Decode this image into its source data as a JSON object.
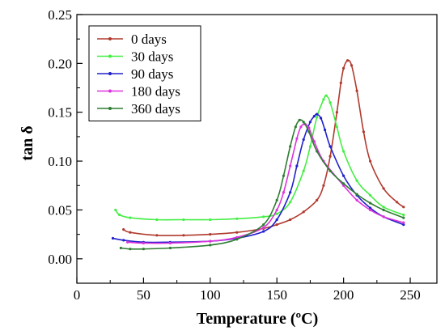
{
  "chart_data": {
    "type": "line",
    "xlabel": "Temperature (ºC)",
    "ylabel": "tan δ",
    "xlim": [
      0,
      270
    ],
    "ylim": [
      -0.025,
      0.25
    ],
    "x_ticks": [
      0,
      50,
      100,
      150,
      200,
      250
    ],
    "y_ticks": [
      0.0,
      0.05,
      0.1,
      0.15,
      0.2,
      0.25
    ],
    "x_tick_labels": [
      "0",
      "50",
      "100",
      "150",
      "200",
      "250"
    ],
    "y_tick_labels": [
      "0.00",
      "0.05",
      "0.10",
      "0.15",
      "0.20",
      "0.25"
    ],
    "grid": false,
    "legend_position": "top-left",
    "series": [
      {
        "name": "0 days",
        "color": "#b03a2e",
        "x": [
          35,
          40,
          60,
          80,
          100,
          120,
          140,
          150,
          160,
          170,
          180,
          185,
          190,
          195,
          198,
          200,
          203,
          206,
          210,
          215,
          220,
          230,
          240,
          245
        ],
        "y": [
          0.03,
          0.027,
          0.024,
          0.024,
          0.025,
          0.027,
          0.031,
          0.035,
          0.04,
          0.048,
          0.06,
          0.075,
          0.105,
          0.15,
          0.18,
          0.195,
          0.203,
          0.198,
          0.172,
          0.13,
          0.1,
          0.072,
          0.058,
          0.053
        ]
      },
      {
        "name": "30 days",
        "color": "#44ee44",
        "x": [
          29,
          32,
          40,
          60,
          80,
          100,
          120,
          140,
          150,
          160,
          170,
          175,
          180,
          185,
          187,
          190,
          195,
          200,
          210,
          220,
          230,
          245
        ],
        "y": [
          0.05,
          0.045,
          0.042,
          0.04,
          0.04,
          0.04,
          0.041,
          0.043,
          0.046,
          0.058,
          0.09,
          0.115,
          0.145,
          0.163,
          0.167,
          0.16,
          0.135,
          0.11,
          0.08,
          0.065,
          0.053,
          0.045
        ]
      },
      {
        "name": "90 days",
        "color": "#2020cc",
        "x": [
          27,
          35,
          50,
          70,
          100,
          120,
          140,
          150,
          160,
          165,
          170,
          175,
          178,
          180,
          183,
          186,
          190,
          200,
          210,
          220,
          230,
          245
        ],
        "y": [
          0.021,
          0.019,
          0.017,
          0.017,
          0.018,
          0.021,
          0.028,
          0.04,
          0.068,
          0.095,
          0.122,
          0.14,
          0.146,
          0.148,
          0.144,
          0.132,
          0.115,
          0.085,
          0.065,
          0.052,
          0.043,
          0.035
        ]
      },
      {
        "name": "180 days",
        "color": "#dd33dd",
        "x": [
          38,
          50,
          70,
          100,
          120,
          140,
          150,
          155,
          160,
          165,
          168,
          171,
          174,
          178,
          185,
          200,
          210,
          220,
          230,
          245
        ],
        "y": [
          0.017,
          0.016,
          0.016,
          0.018,
          0.022,
          0.032,
          0.05,
          0.068,
          0.095,
          0.123,
          0.135,
          0.138,
          0.134,
          0.12,
          0.1,
          0.075,
          0.06,
          0.05,
          0.043,
          0.037
        ]
      },
      {
        "name": "360 days",
        "color": "#2e7d32",
        "x": [
          33,
          40,
          50,
          70,
          100,
          120,
          140,
          150,
          155,
          160,
          164,
          167,
          170,
          174,
          180,
          190,
          200,
          210,
          220,
          230,
          245
        ],
        "y": [
          0.011,
          0.01,
          0.01,
          0.011,
          0.014,
          0.02,
          0.035,
          0.06,
          0.085,
          0.115,
          0.135,
          0.142,
          0.14,
          0.13,
          0.11,
          0.09,
          0.077,
          0.066,
          0.057,
          0.05,
          0.042
        ]
      }
    ]
  }
}
